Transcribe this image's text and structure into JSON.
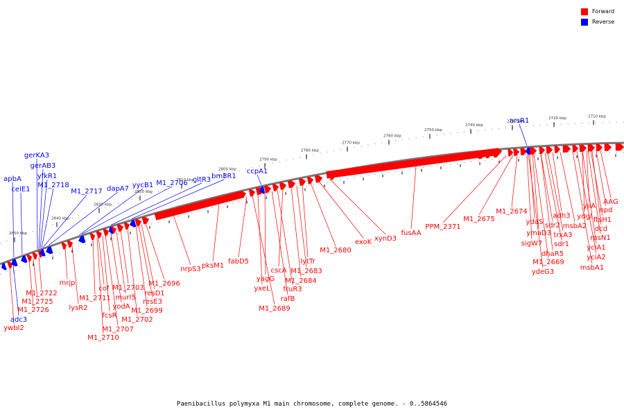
{
  "legend": {
    "forward": {
      "label": "Forward",
      "color": "#ff0000"
    },
    "reverse": {
      "label": "Reverse",
      "color": "#0000ff"
    }
  },
  "caption": "Paenibacillus polymyxa M1 main chromosome, complete genome. - 0..5864546",
  "scale_labels": [
    "2710 kbp",
    "2720 kbp",
    "2730 kbp",
    "2740 kbp",
    "2750 kbp",
    "2760 kbp",
    "2770 kbp",
    "2780 kbp",
    "2790 kbp",
    "2800 kbp",
    "2810 kbp",
    "2820 kbp",
    "2830 kbp",
    "2840 kbp",
    "2850 kbp"
  ],
  "forward_genes": [
    "AAG",
    "npd",
    "ftsH1",
    "yjiA",
    "ydgI",
    "dcd",
    "rpsN1",
    "yciA1",
    "yciA2",
    "msbA1",
    "adh3",
    "msbA2",
    "trxA3",
    "sdr2",
    "sdr1",
    "dhaR5",
    "yddS",
    "ymaD3",
    "sigW7",
    "M1_2669",
    "ydeG3",
    "M1_2674",
    "M1_2675",
    "PPM_2371",
    "fusAA",
    "xynD3",
    "exoK",
    "M1_2680",
    "lytTr",
    "M1_2683",
    "M1_2684",
    "cscA",
    "fruR3",
    "rafB",
    "yagG",
    "yxeL",
    "M1_2689",
    "fabD5",
    "pksM1",
    "nrpS3",
    "M1_2696",
    "resD1",
    "resE3",
    "M1_2699",
    "M1_2702",
    "M1_2703",
    "murI5",
    "yodA",
    "M1_2707",
    "fcsR",
    "cof",
    "M1_2710",
    "M1_2711",
    "lysR2",
    "mrjp",
    "M1_2722",
    "M1_2725",
    "M1_2726",
    "ywbI2"
  ],
  "reverse_genes": [
    "arsR1",
    "ccpA1",
    "bm3R1",
    "gltR3",
    "M1_2706",
    "yycB1",
    "dapA7",
    "M1_2717",
    "M1_2718",
    "yfkR1",
    "gerAB3",
    "gerKA3",
    "apbA",
    "celE1",
    "adc3"
  ]
}
